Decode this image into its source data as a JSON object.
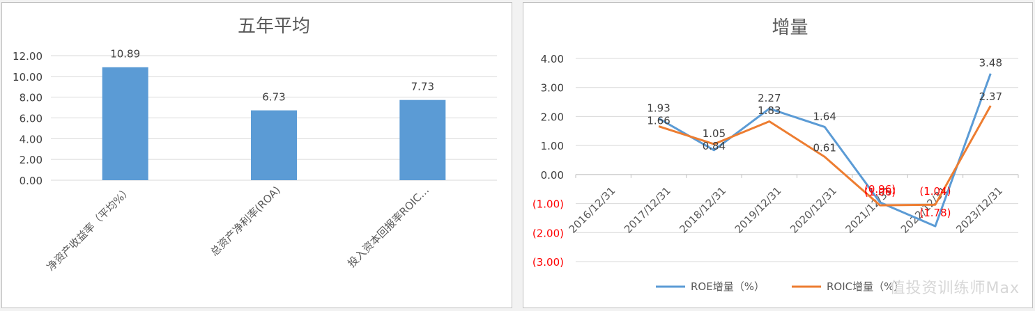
{
  "chart_data": [
    {
      "type": "bar",
      "title": "五年平均",
      "categories": [
        "净资产收益率（平均%）",
        "总资产净利率(ROA)",
        "投入资本回报率ROIC…"
      ],
      "values": [
        10.89,
        6.73,
        7.73
      ],
      "value_labels": [
        "10.89",
        "6.73",
        "7.73"
      ],
      "ylim": [
        0,
        12
      ],
      "ytick_values": [
        0,
        2,
        4,
        6,
        8,
        10,
        12
      ],
      "ytick_labels": [
        "0.00",
        "2.00",
        "4.00",
        "6.00",
        "8.00",
        "10.00",
        "12.00"
      ],
      "grid": true,
      "bar_color": "#5b9bd5"
    },
    {
      "type": "line",
      "title": "增量",
      "categories": [
        "2016/12/31",
        "2017/12/31",
        "2018/12/31",
        "2019/12/31",
        "2020/12/31",
        "2021/12/31",
        "2022/12/31",
        "2023/12/31"
      ],
      "series": [
        {
          "name": "ROE增量（%）",
          "color": "#5b9bd5",
          "values": [
            null,
            1.93,
            0.84,
            2.27,
            1.64,
            -0.96,
            -1.78,
            3.48
          ],
          "labels": [
            "",
            "1.93",
            "0.84",
            "2.27",
            "1.64",
            "(0.96)",
            "(1.78)",
            "3.48"
          ]
        },
        {
          "name": "ROIC增量（%）",
          "color": "#ed7d31",
          "values": [
            null,
            1.66,
            1.05,
            1.83,
            0.61,
            -1.06,
            -1.04,
            2.37
          ],
          "labels": [
            "",
            "1.66",
            "1.05",
            "1.83",
            "0.61",
            "(1.06)",
            "(1.04)",
            "2.37"
          ]
        }
      ],
      "ylim": [
        -3,
        4
      ],
      "ytick_values": [
        -3,
        -2,
        -1,
        0,
        1,
        2,
        3,
        4
      ],
      "ytick_labels": [
        "(3.00)",
        "(2.00)",
        "(1.00)",
        "0.00",
        "1.00",
        "2.00",
        "3.00",
        "4.00"
      ],
      "grid": true,
      "legend_position": "bottom",
      "negative_label_color": "#ff0000"
    }
  ],
  "watermark": "值投资训练师Max"
}
